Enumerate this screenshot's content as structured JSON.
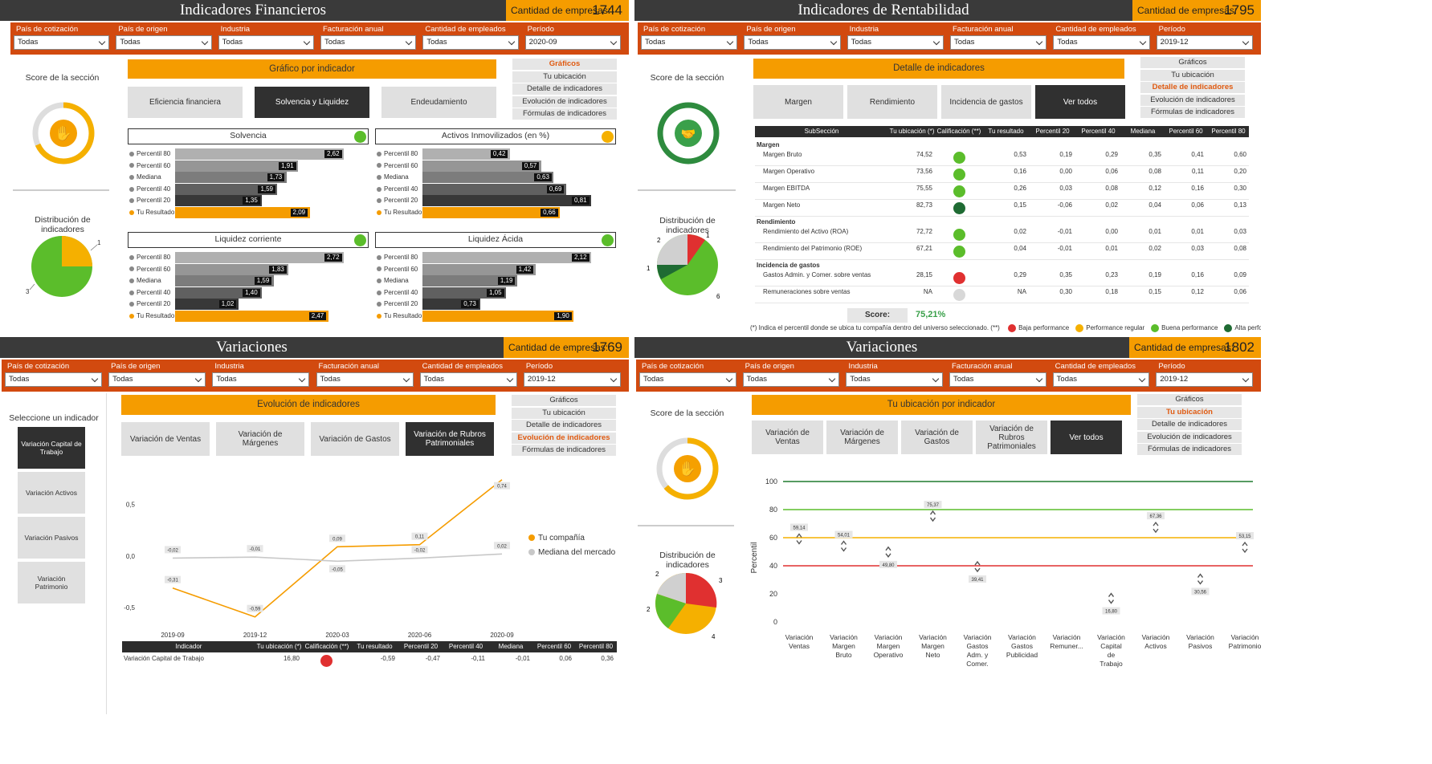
{
  "filter_labels": [
    "País de cotización",
    "País de origen",
    "Industria",
    "Facturación anual",
    "Cantidad de empleados",
    "Período"
  ],
  "filter_default": "Todas",
  "nav_items": [
    "Gráficos",
    "Tu ubicación",
    "Detalle de indicadores",
    "Evolución de indicadores",
    "Fórmulas de indicadores"
  ],
  "count_label": "Cantidad de empresas:",
  "p1": {
    "title": "Indicadores Financieros",
    "count": "1744",
    "period": "2020-09",
    "header": "Gráfico por indicador",
    "tabs": [
      "Eficiencia financiera",
      "Solvencia y Liquidez",
      "Endeudamiento"
    ],
    "score_label": "Score de la sección",
    "dist_label": "Distribución de indicadores",
    "pie_labels": [
      "1",
      "3"
    ],
    "row_labels": [
      "Percentil 80",
      "Percentil 60",
      "Mediana",
      "Percentil 40",
      "Percentil 20",
      "Tu Resultado"
    ],
    "charts": [
      {
        "name": "Solvencia",
        "values": [
          "2,62",
          "1,91",
          "1,73",
          "1,59",
          "1,35",
          "2,09"
        ]
      },
      {
        "name": "Activos Inmovilizados (en %)",
        "values": [
          "0,42",
          "0,57",
          "0,63",
          "0,69",
          "0,81",
          "0,66"
        ]
      },
      {
        "name": "Liquidez corriente",
        "values": [
          "2,72",
          "1,83",
          "1,59",
          "1,40",
          "1,02",
          "2,47"
        ]
      },
      {
        "name": "Liquidez Ácida",
        "values": [
          "2,12",
          "1,42",
          "1,19",
          "1,05",
          "0,73",
          "1,90"
        ]
      }
    ]
  },
  "p2": {
    "title": "Indicadores de Rentabilidad",
    "count": "1795",
    "period": "2019-12",
    "header": "Detalle de indicadores",
    "tabs": [
      "Margen",
      "Rendimiento",
      "Incidencia de gastos",
      "Ver todos"
    ],
    "score_label": "Score de la sección",
    "dist_label": "Distribución de indicadores",
    "pie_labels": [
      "2",
      "1",
      "1",
      "6"
    ],
    "columns": [
      "SubSección",
      "Tu ubicación (*)",
      "Calificación (**)",
      "Tu resultado",
      "Percentil 20",
      "Percentil 40",
      "Mediana",
      "Percentil 60",
      "Percentil 80"
    ],
    "groups": [
      {
        "name": "Margen",
        "rows": [
          [
            "Margen Bruto",
            "74,52",
            "g",
            "0,53",
            "0,19",
            "0,29",
            "0,35",
            "0,41",
            "0,60"
          ],
          [
            "Margen Operativo",
            "73,56",
            "g",
            "0,16",
            "0,00",
            "0,06",
            "0,08",
            "0,11",
            "0,20"
          ],
          [
            "Margen EBITDA",
            "75,55",
            "g",
            "0,26",
            "0,03",
            "0,08",
            "0,12",
            "0,16",
            "0,30"
          ],
          [
            "Margen Neto",
            "82,73",
            "dg",
            "0,15",
            "-0,06",
            "0,02",
            "0,04",
            "0,06",
            "0,13"
          ]
        ]
      },
      {
        "name": "Rendimiento",
        "rows": [
          [
            "Rendimiento del Activo (ROA)",
            "72,72",
            "g",
            "0,02",
            "-0,01",
            "0,00",
            "0,01",
            "0,01",
            "0,03"
          ],
          [
            "Rendimiento del Patrimonio (ROE)",
            "67,21",
            "g",
            "0,04",
            "-0,01",
            "0,01",
            "0,02",
            "0,03",
            "0,08"
          ]
        ]
      },
      {
        "name": "Incidencia de gastos",
        "rows": [
          [
            "Gastos Admin. y Comer. sobre ventas",
            "28,15",
            "r",
            "0,29",
            "0,35",
            "0,23",
            "0,19",
            "0,16",
            "0,09"
          ],
          [
            "Remuneraciones sobre ventas",
            "NA",
            "gr",
            "NA",
            "0,30",
            "0,18",
            "0,15",
            "0,12",
            "0,06"
          ]
        ]
      }
    ],
    "score_text": "Score:",
    "score_value": "75,21%",
    "footnote": "(*) Indica el percentil donde se ubica tu compañía dentro del universo seleccionado. (**)",
    "legend": [
      "Baja performance",
      "Performance regular",
      "Buena performance",
      "Alta performance"
    ]
  },
  "p3": {
    "title": "Variaciones",
    "count": "1769",
    "period": "2019-12",
    "header": "Evolución de indicadores",
    "select_label": "Seleccione un indicador",
    "side": [
      "Variación Capital de Trabajo",
      "Variación Activos",
      "Variación Pasivos",
      "Variación Patrimonio"
    ],
    "tabs": [
      "Variación de Ventas",
      "Variación de Márgenes",
      "Variación de Gastos",
      "Variación de Rubros Patrimoniales"
    ],
    "legend": [
      "Tu compañía",
      "Mediana del mercado"
    ],
    "yticks": [
      "0,5",
      "0,0",
      "-0,5"
    ],
    "columns": [
      "Indicador",
      "Tu ubicación (*)",
      "Calificación (**)",
      "Tu resultado",
      "Percentil 20",
      "Percentil 40",
      "Mediana",
      "Percentil 60",
      "Percentil 80"
    ],
    "row": [
      "Variación Capital de Trabajo",
      "16,80",
      "r",
      "-0,59",
      "-0,47",
      "-0,11",
      "-0,01",
      "0,06",
      "0,36"
    ]
  },
  "p4": {
    "title": "Variaciones",
    "count": "1802",
    "period": "2019-12",
    "header": "Tu ubicación por indicador",
    "score_label": "Score de la sección",
    "dist_label": "Distribución de indicadores",
    "pie_labels": [
      "2",
      "3",
      "2",
      "4"
    ],
    "tabs": [
      "Variación de Ventas",
      "Variación de Márgenes",
      "Variación de Gastos",
      "Variación de Rubros Patrimoniales",
      "Ver todos"
    ],
    "ylabel": "Percentil",
    "yticks": [
      "100",
      "80",
      "60",
      "40",
      "20",
      "0"
    ]
  },
  "chart_data": [
    {
      "type": "line",
      "title": "",
      "x": [
        "2019-09",
        "2019-12",
        "2020-03",
        "2020-06",
        "2020-09"
      ],
      "series": [
        {
          "name": "Tu compañía",
          "values": [
            -0.31,
            -0.59,
            0.09,
            0.11,
            0.74
          ],
          "labels": [
            "-0,31",
            "-0,59",
            "0,09",
            "0,11",
            "0,74"
          ]
        },
        {
          "name": "Mediana del mercado",
          "values": [
            -0.02,
            -0.01,
            -0.05,
            -0.02,
            0.02
          ],
          "labels": [
            "-0,02",
            "-0,01",
            "-0,05",
            "-0,02",
            "0,02"
          ]
        }
      ],
      "ylim": [
        -0.6,
        0.8
      ]
    },
    {
      "type": "scatter",
      "title": "",
      "ylabel": "Percentil",
      "categories": [
        "Variación Ventas",
        "Variación Margen Bruto",
        "Variación Margen Operativo",
        "Variación Margen Neto",
        "Variación Gastos Adm. y Comer.",
        "Variación Gastos Publicidad",
        "Variación Remuner...",
        "Variación Capital de Trabajo",
        "Variación Activos",
        "Variación Pasivos",
        "Variación Patrimonio"
      ],
      "values": [
        59.14,
        54.01,
        49.8,
        75.37,
        39.41,
        null,
        null,
        16.8,
        67.36,
        30.56,
        53.15
      ],
      "labels": [
        "59,14",
        "54,01",
        "49,80",
        "75,37",
        "39,41",
        "",
        "",
        "16,80",
        "67,36",
        "30,56",
        "53,15"
      ],
      "ylim": [
        0,
        100
      ],
      "reference_lines": [
        {
          "value": 100,
          "color": "#1f7a2e"
        },
        {
          "value": 80,
          "color": "#5bbd2b"
        },
        {
          "value": 60,
          "color": "#f5b000"
        },
        {
          "value": 40,
          "color": "#e03030"
        }
      ]
    }
  ]
}
